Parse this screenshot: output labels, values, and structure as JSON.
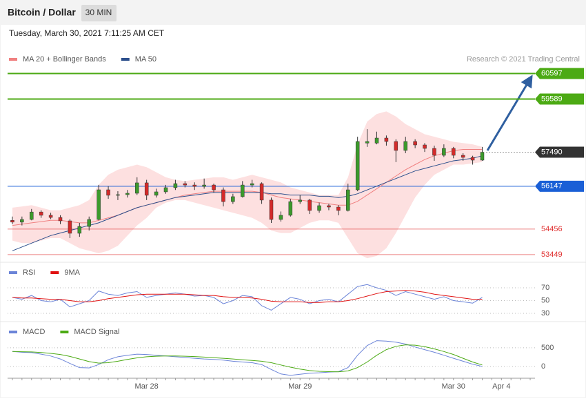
{
  "header": {
    "title": "Bitcoin / Dollar",
    "interval": "30 MIN",
    "date": "Tuesday, March 30, 2021 7:11:25 AM CET"
  },
  "chart_data": [
    {
      "type": "candlestick",
      "credit": "Research © 2021 Trading Central",
      "ylim": [
        53200,
        61400
      ],
      "up_color": "#3c9a2c",
      "down_color": "#d42a2a",
      "band_color": "#fde0e0",
      "candles": [
        [
          54800,
          54950,
          54650,
          54730
        ],
        [
          54730,
          54950,
          54600,
          54835
        ],
        [
          54835,
          55250,
          54800,
          55130
        ],
        [
          55130,
          55200,
          54900,
          55000
        ],
        [
          55000,
          55100,
          54850,
          54915
        ],
        [
          54915,
          55000,
          54650,
          54780
        ],
        [
          54780,
          54850,
          54100,
          54290
        ],
        [
          54290,
          54700,
          54150,
          54560
        ],
        [
          54560,
          54950,
          54400,
          54835
        ],
        [
          54835,
          56200,
          54800,
          56006
        ],
        [
          56006,
          56150,
          55650,
          55790
        ],
        [
          55790,
          55950,
          55600,
          55815
        ],
        [
          55815,
          56000,
          55700,
          55870
        ],
        [
          55870,
          56500,
          55800,
          56280
        ],
        [
          56280,
          56400,
          55600,
          55790
        ],
        [
          55790,
          56050,
          55700,
          55925
        ],
        [
          55925,
          56200,
          55850,
          56090
        ],
        [
          56090,
          56400,
          56000,
          56250
        ],
        [
          56250,
          56350,
          56100,
          56195
        ],
        [
          56195,
          56300,
          56000,
          56140
        ],
        [
          56140,
          56450,
          56050,
          56195
        ],
        [
          56195,
          56250,
          55900,
          56005
        ],
        [
          56005,
          56100,
          55350,
          55540
        ],
        [
          55540,
          55850,
          55450,
          55735
        ],
        [
          55735,
          56350,
          55700,
          56195
        ],
        [
          56195,
          56400,
          56100,
          56250
        ],
        [
          56250,
          56300,
          55450,
          55600
        ],
        [
          55600,
          55700,
          54700,
          54835
        ],
        [
          54835,
          55150,
          54750,
          55000
        ],
        [
          55000,
          55650,
          54950,
          55540
        ],
        [
          55540,
          55800,
          55450,
          55600
        ],
        [
          55600,
          55650,
          55050,
          55190
        ],
        [
          55190,
          55500,
          55100,
          55380
        ],
        [
          55380,
          55450,
          55200,
          55325
        ],
        [
          55325,
          55400,
          55000,
          55190
        ],
        [
          55190,
          56250,
          55150,
          56005
        ],
        [
          56005,
          58100,
          55950,
          57913
        ],
        [
          57850,
          58400,
          57700,
          57913
        ],
        [
          57850,
          58300,
          57800,
          58049
        ],
        [
          58049,
          58150,
          57750,
          57913
        ],
        [
          57913,
          58000,
          57100,
          57560
        ],
        [
          57560,
          58100,
          57450,
          57913
        ],
        [
          57913,
          58000,
          57650,
          57777
        ],
        [
          57777,
          57850,
          57500,
          57640
        ],
        [
          57640,
          57750,
          57150,
          57368
        ],
        [
          57368,
          57800,
          57300,
          57640
        ],
        [
          57640,
          57700,
          57250,
          57368
        ],
        [
          57368,
          57450,
          57150,
          57286
        ],
        [
          57286,
          57350,
          57000,
          57177
        ],
        [
          57177,
          57700,
          57150,
          57490
        ],
        null,
        null,
        null,
        null,
        null
      ],
      "series": [
        {
          "name": "MA 20 + Bollinger Bands",
          "color": "#f08080",
          "values": [
            54600,
            54650,
            54700,
            54750,
            54800,
            54800,
            54750,
            54700,
            54700,
            54800,
            54900,
            55000,
            55150,
            55300,
            55400,
            55500,
            55600,
            55700,
            55800,
            55850,
            55900,
            55950,
            55950,
            55950,
            55950,
            55950,
            55900,
            55800,
            55700,
            55650,
            55600,
            55550,
            55500,
            55450,
            55400,
            55400,
            55550,
            55800,
            56050,
            56300,
            56550,
            56800,
            57000,
            57200,
            57350,
            57450,
            57550,
            57600,
            57600,
            57600,
            null,
            null,
            null,
            null,
            null
          ]
        },
        {
          "name": "MA 50",
          "color": "#2c4f8c",
          "values": [
            53600,
            53750,
            53900,
            54050,
            54200,
            54300,
            54400,
            54500,
            54600,
            54700,
            54850,
            55000,
            55150,
            55300,
            55400,
            55500,
            55600,
            55700,
            55750,
            55800,
            55850,
            55900,
            55900,
            55900,
            55900,
            55900,
            55900,
            55850,
            55850,
            55800,
            55800,
            55800,
            55750,
            55750,
            55700,
            55750,
            55850,
            56000,
            56150,
            56300,
            56450,
            56600,
            56750,
            56850,
            56950,
            57050,
            57150,
            57200,
            57250,
            57350,
            null,
            null,
            null,
            null,
            null
          ]
        }
      ],
      "bb_upper": [
        55300,
        55350,
        55400,
        55300,
        55200,
        55200,
        55300,
        55400,
        55600,
        56200,
        56600,
        56800,
        56900,
        57000,
        56900,
        56700,
        56500,
        56400,
        56350,
        56400,
        56450,
        56500,
        56500,
        56400,
        56500,
        56600,
        56500,
        56400,
        56300,
        56100,
        56000,
        55900,
        55800,
        55800,
        55800,
        56500,
        57800,
        58700,
        59000,
        59100,
        58900,
        58600,
        58400,
        58200,
        58100,
        58000,
        57900,
        57850,
        57800,
        57700,
        null,
        null,
        null,
        null,
        null
      ],
      "bb_lower": [
        54000,
        53900,
        53900,
        54000,
        54100,
        54100,
        53900,
        53700,
        53600,
        53500,
        53600,
        53800,
        54200,
        54600,
        54900,
        55300,
        55500,
        55600,
        55600,
        55500,
        55400,
        55300,
        55200,
        55100,
        55000,
        54900,
        54700,
        54400,
        54300,
        54300,
        54500,
        54700,
        54800,
        54800,
        54700,
        54100,
        53500,
        53300,
        53400,
        53700,
        54300,
        55000,
        55700,
        56200,
        56600,
        56800,
        57000,
        57000,
        57050,
        57100,
        null,
        null,
        null,
        null,
        null
      ],
      "levels": [
        {
          "value": 60597,
          "color": "#4caa14",
          "style": "tag"
        },
        {
          "value": 59589,
          "color": "#4caa14",
          "style": "tag"
        },
        {
          "value": 57490,
          "color": "#333333",
          "style": "dotted"
        },
        {
          "value": 56147,
          "color": "#1a5fd6",
          "style": "tag"
        },
        {
          "value": 54456,
          "color": "#e03030",
          "style": "text"
        },
        {
          "value": 53449,
          "color": "#e03030",
          "style": "text"
        }
      ]
    },
    {
      "type": "line",
      "ylim": [
        23.5,
        90.5
      ],
      "yticks": [
        30,
        50,
        70
      ],
      "series": [
        {
          "name": "RSI",
          "color": "#6b84d8",
          "values": [
            55,
            52,
            58,
            50,
            48,
            52,
            40,
            45,
            50,
            65,
            60,
            58,
            62,
            64,
            55,
            58,
            60,
            62,
            60,
            57,
            58,
            55,
            45,
            50,
            58,
            56,
            42,
            35,
            45,
            55,
            52,
            45,
            50,
            52,
            48,
            60,
            72,
            75,
            70,
            66,
            58,
            64,
            60,
            56,
            52,
            56,
            50,
            48,
            46,
            55,
            null,
            null,
            null,
            null,
            null
          ]
        },
        {
          "name": "9MA",
          "color": "#e01010",
          "values": [
            55,
            54,
            54,
            53,
            52,
            52,
            50,
            48,
            48,
            50,
            53,
            55,
            57,
            59,
            60,
            60,
            60,
            60,
            60,
            59,
            58,
            58,
            56,
            55,
            55,
            54,
            52,
            49,
            48,
            48,
            48,
            47,
            47,
            48,
            48,
            50,
            53,
            57,
            61,
            64,
            65,
            66,
            65,
            63,
            60,
            58,
            56,
            54,
            52,
            52,
            null,
            null,
            null,
            null,
            null
          ]
        }
      ]
    },
    {
      "type": "line",
      "ylim": [
        -260,
        850
      ],
      "yticks": [
        0,
        500
      ],
      "categories": [
        null,
        null,
        null,
        null,
        null,
        null,
        null,
        null,
        null,
        null,
        null,
        null,
        null,
        null,
        "Mar 28",
        null,
        null,
        null,
        null,
        null,
        null,
        null,
        null,
        null,
        null,
        null,
        null,
        null,
        null,
        null,
        "Mar 29",
        null,
        null,
        null,
        null,
        null,
        null,
        null,
        null,
        null,
        null,
        null,
        null,
        null,
        null,
        null,
        "Mar 30",
        null,
        null,
        null,
        null,
        "Apr 4",
        null,
        null,
        null
      ],
      "series": [
        {
          "name": "MACD",
          "color": "#6b84d8",
          "values": [
            400,
            380,
            370,
            330,
            280,
            200,
            80,
            -30,
            -40,
            50,
            180,
            260,
            300,
            330,
            320,
            300,
            280,
            260,
            240,
            220,
            200,
            190,
            170,
            140,
            120,
            100,
            50,
            -80,
            -200,
            -240,
            -210,
            -180,
            -170,
            -150,
            -140,
            -30,
            300,
            560,
            690,
            680,
            650,
            600,
            520,
            450,
            380,
            300,
            220,
            140,
            60,
            0,
            null,
            null,
            null,
            null,
            null
          ]
        },
        {
          "name": "MACD Signal",
          "color": "#4caa14",
          "values": [
            400,
            395,
            390,
            375,
            350,
            320,
            270,
            200,
            130,
            90,
            100,
            140,
            190,
            230,
            260,
            275,
            280,
            280,
            275,
            265,
            250,
            235,
            220,
            200,
            180,
            160,
            140,
            100,
            40,
            -20,
            -70,
            -110,
            -130,
            -140,
            -145,
            -120,
            -30,
            120,
            300,
            450,
            540,
            580,
            570,
            530,
            470,
            400,
            320,
            220,
            120,
            40,
            null,
            null,
            null,
            null,
            null
          ]
        }
      ]
    }
  ]
}
